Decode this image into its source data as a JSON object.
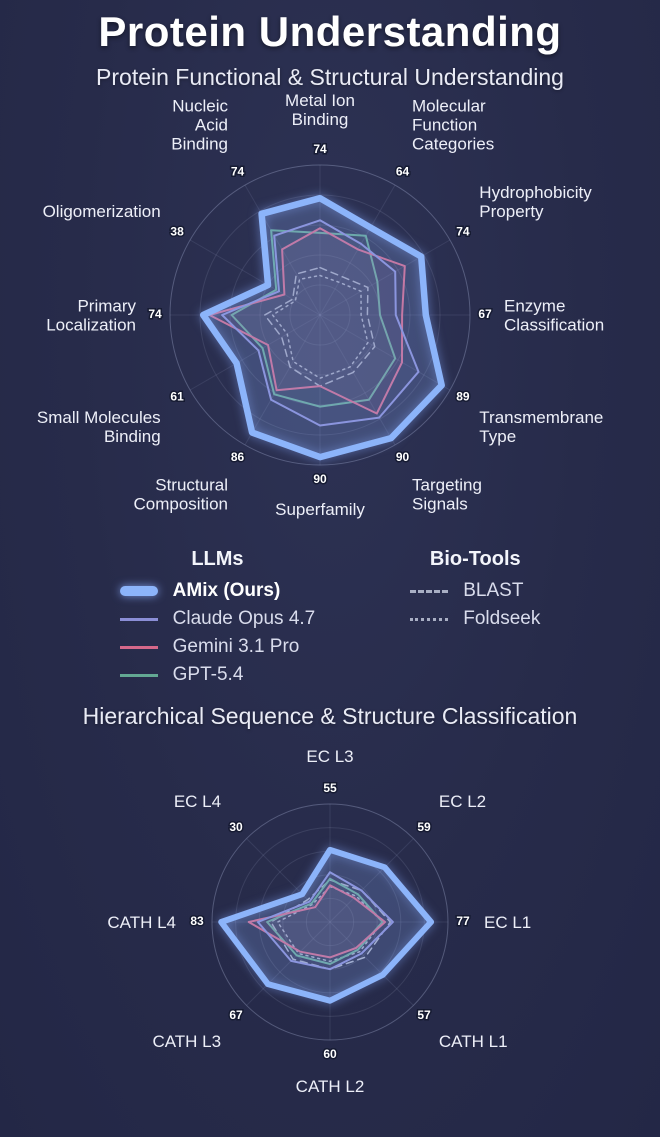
{
  "page": {
    "title": "Protein Understanding",
    "background": "#272b4a"
  },
  "sections": {
    "functional_subtitle": "Protein Functional & Structural Understanding",
    "hierarchical_subtitle": "Hierarchical Sequence & Structure Classification"
  },
  "legend": {
    "llms_header": "LLMs",
    "biotools_header": "Bio-Tools",
    "llms": [
      {
        "label": "AMix (Ours)",
        "color": "#8cb4fa",
        "style": "thick"
      },
      {
        "label": "Claude Opus 4.7",
        "color": "#8b8ed6",
        "style": "solid"
      },
      {
        "label": "Gemini 3.1 Pro",
        "color": "#d5688a",
        "style": "solid"
      },
      {
        "label": "GPT-5.4",
        "color": "#63a893",
        "style": "solid"
      }
    ],
    "biotools": [
      {
        "label": "BLAST",
        "color": "#a9afc4",
        "style": "dashed"
      },
      {
        "label": "Foldseek",
        "color": "#a9afc4",
        "style": "dotted"
      }
    ]
  },
  "chart_data": [
    {
      "type": "radar",
      "title": "Protein Functional & Structural Understanding",
      "max": 95,
      "rings": 5,
      "axes": [
        {
          "lines": [
            "Metal Ion",
            "Binding"
          ]
        },
        {
          "lines": [
            "Molecular",
            "Function",
            "Categories"
          ]
        },
        {
          "lines": [
            "Hydrophobicity",
            "Property"
          ]
        },
        {
          "lines": [
            "Enzyme",
            "Classification"
          ]
        },
        {
          "lines": [
            "Transmembrane",
            "Type"
          ]
        },
        {
          "lines": [
            "Targeting",
            "Signals"
          ]
        },
        {
          "lines": [
            "Superfamily"
          ]
        },
        {
          "lines": [
            "Structural",
            "Composition"
          ]
        },
        {
          "lines": [
            "Small Molecules",
            "Binding"
          ]
        },
        {
          "lines": [
            "Primary",
            "Localization"
          ]
        },
        {
          "lines": [
            "Oligomerization"
          ]
        },
        {
          "lines": [
            "Nucleic",
            "Acid",
            "Binding"
          ]
        }
      ],
      "series": [
        {
          "name": "AMix (Ours)",
          "color": "#8cb4fa",
          "width": 6.5,
          "dash": null,
          "fill_opacity": 0.16,
          "glow": true,
          "annotate": true,
          "values": [
            74,
            64,
            74,
            67,
            89,
            90,
            90,
            86,
            61,
            74,
            38,
            74
          ]
        },
        {
          "name": "Claude Opus 4.7",
          "color": "#8b8ed6",
          "width": 2,
          "dash": null,
          "fill_opacity": 0.07,
          "values": [
            60,
            52,
            55,
            48,
            72,
            75,
            70,
            62,
            45,
            62,
            30,
            58
          ]
        },
        {
          "name": "Gemini 3.1 Pro",
          "color": "#d5688a",
          "width": 2,
          "dash": null,
          "fill_opacity": 0.07,
          "values": [
            55,
            48,
            62,
            52,
            60,
            72,
            45,
            55,
            38,
            70,
            26,
            48
          ]
        },
        {
          "name": "GPT-5.4",
          "color": "#63a893",
          "width": 2,
          "dash": null,
          "fill_opacity": 0.07,
          "values": [
            52,
            58,
            42,
            38,
            55,
            62,
            58,
            58,
            42,
            56,
            32,
            62
          ]
        },
        {
          "name": "BLAST",
          "color": "#a9afc4",
          "width": 1.5,
          "dash": "7 5",
          "fill_opacity": 0,
          "values": [
            30,
            28,
            35,
            30,
            40,
            42,
            45,
            38,
            28,
            35,
            20,
            30
          ]
        },
        {
          "name": "Foldseek",
          "color": "#a9afc4",
          "width": 1.5,
          "dash": "2 4",
          "fill_opacity": 0,
          "values": [
            25,
            24,
            30,
            26,
            35,
            38,
            40,
            34,
            24,
            30,
            18,
            26
          ]
        }
      ]
    },
    {
      "type": "radar",
      "title": "Hierarchical Sequence & Structure Classification",
      "max": 90,
      "rings": 5,
      "axes": [
        {
          "lines": [
            "EC L3"
          ]
        },
        {
          "lines": [
            "EC L2"
          ]
        },
        {
          "lines": [
            "EC L1"
          ]
        },
        {
          "lines": [
            "CATH L1"
          ]
        },
        {
          "lines": [
            "CATH L2"
          ]
        },
        {
          "lines": [
            "CATH L3"
          ]
        },
        {
          "lines": [
            "CATH L4"
          ]
        },
        {
          "lines": [
            "EC L4"
          ]
        }
      ],
      "series": [
        {
          "name": "AMix (Ours)",
          "color": "#8cb4fa",
          "width": 6,
          "dash": null,
          "fill_opacity": 0.16,
          "glow": true,
          "annotate": true,
          "values": [
            55,
            59,
            77,
            57,
            60,
            67,
            83,
            30
          ]
        },
        {
          "name": "Claude Opus 4.7",
          "color": "#8b8ed6",
          "width": 2,
          "dash": null,
          "fill_opacity": 0.07,
          "values": [
            38,
            34,
            48,
            34,
            36,
            42,
            55,
            22
          ]
        },
        {
          "name": "Gemini 3.1 Pro",
          "color": "#d5688a",
          "width": 2,
          "dash": null,
          "fill_opacity": 0.07,
          "values": [
            28,
            26,
            42,
            28,
            27,
            32,
            62,
            16
          ]
        },
        {
          "name": "GPT-5.4",
          "color": "#63a893",
          "width": 2,
          "dash": null,
          "fill_opacity": 0.07,
          "values": [
            33,
            30,
            40,
            30,
            32,
            36,
            48,
            20
          ]
        },
        {
          "name": "BLAST",
          "color": "#a9afc4",
          "width": 1.5,
          "dash": "7 5",
          "fill_opacity": 0,
          "values": [
            32,
            34,
            46,
            38,
            36,
            40,
            45,
            24
          ]
        },
        {
          "name": "Foldseek",
          "color": "#a9afc4",
          "width": 1.5,
          "dash": "2 4",
          "fill_opacity": 0,
          "values": [
            27,
            28,
            40,
            32,
            30,
            34,
            40,
            19
          ]
        }
      ]
    }
  ]
}
